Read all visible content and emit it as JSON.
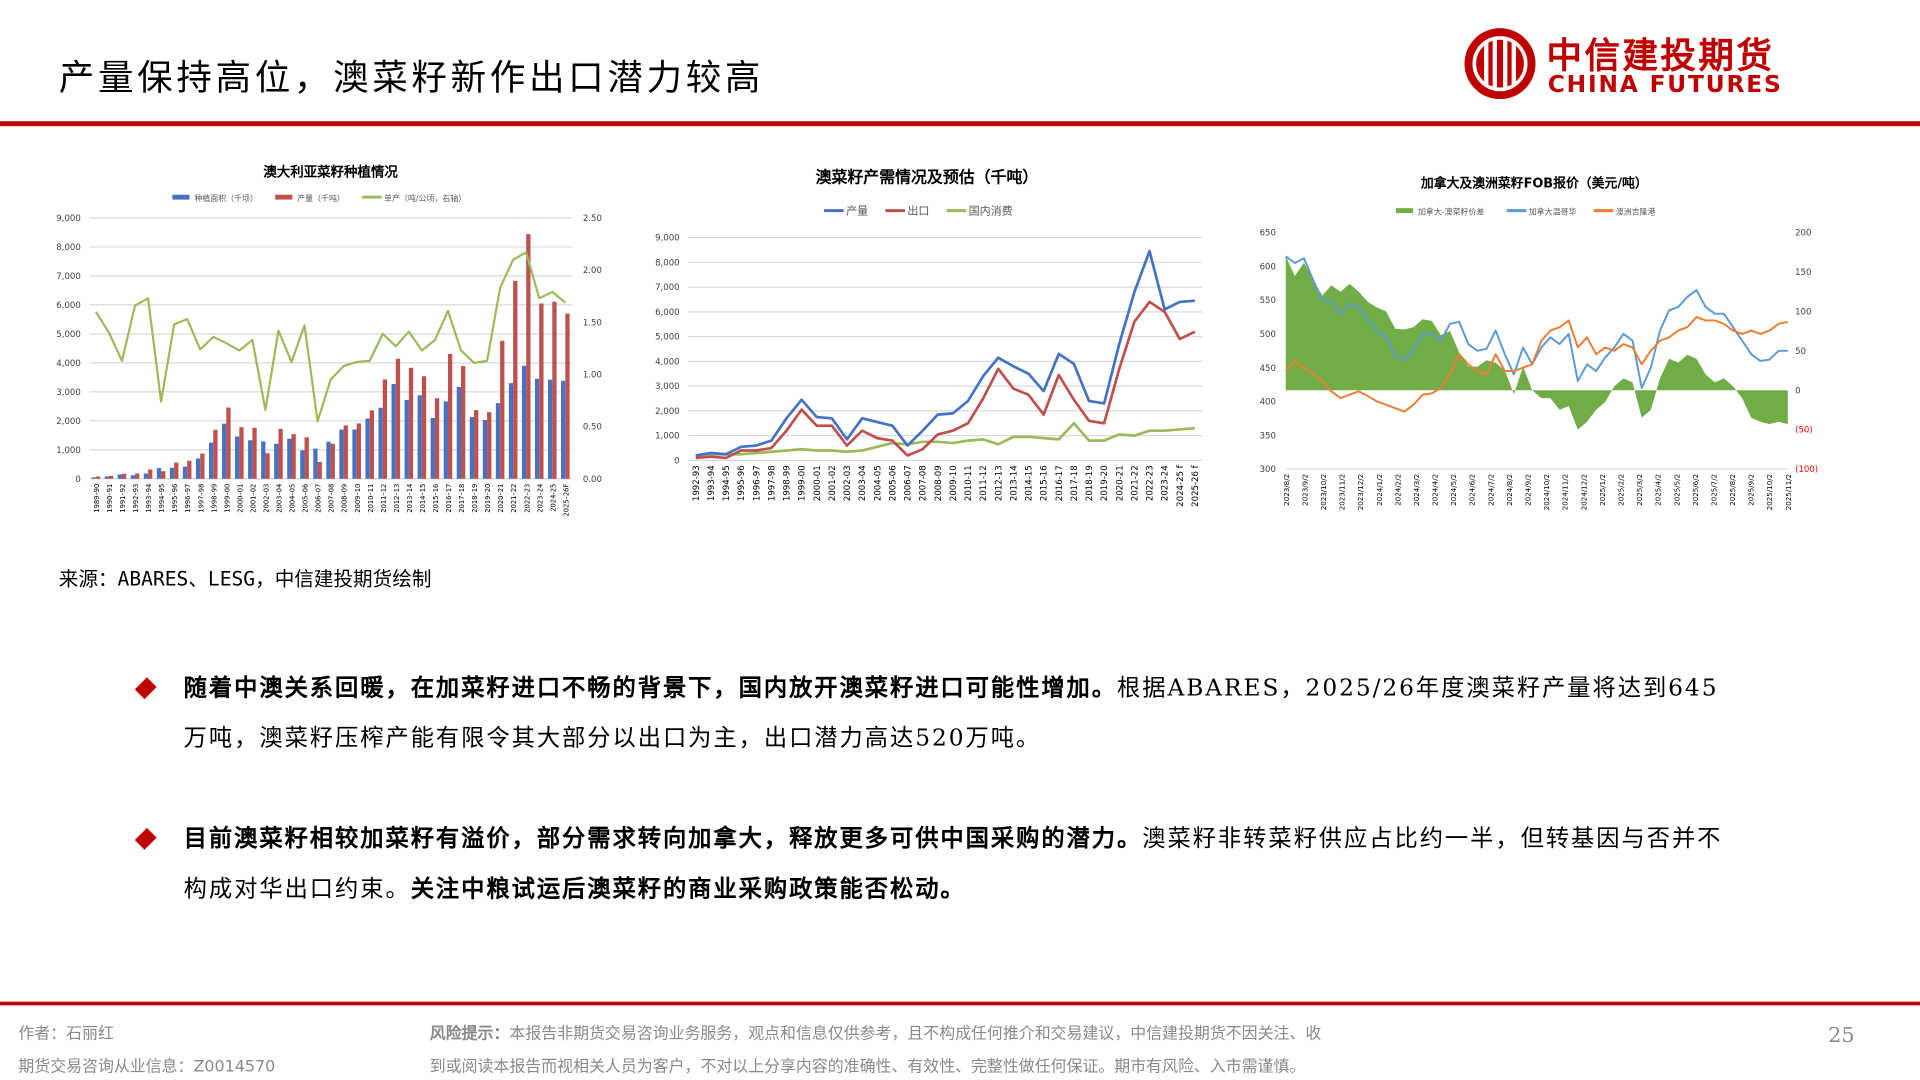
{
  "header": {
    "title": "产量保持高位，澳菜籽新作出口潜力较高",
    "logo_cn": "中信建投期货",
    "logo_en": "CHINA FUTURES"
  },
  "source": "来源：ABARES、LESG，中信建投期货绘制",
  "bullets": [
    {
      "bold": "随着中澳关系回暖，在加菜籽进口不畅的背景下，国内放开澳菜籽进口可能性增加。",
      "normal": "根据ABARES，2025/26年度澳菜籽产量将达到645万吨，澳菜籽压榨产能有限令其大部分以出口为主，出口潜力高达520万吨。",
      "bold2": ""
    },
    {
      "bold": "目前澳菜籽相较加菜籽有溢价，部分需求转向加拿大，释放更多可供中国采购的潜力。",
      "normal": "澳菜籽非转菜籽供应占比约一半，但转基因与否并不构成对华出口约束。",
      "bold2": "关注中粮试运后澳菜籽的商业采购政策能否松动。"
    }
  ],
  "footer": {
    "author": "作者：石丽红",
    "license": "期货交易咨询从业信息：Z0014570",
    "risk_label": "风险提示：",
    "risk_line1": "本报告非期货交易咨询业务服务，观点和信息仅供参考，且不构成任何推介和交易建议，中信建投期货不因关注、收",
    "risk_line2": "到或阅读本报告而视相关人员为客户，不对以上分享内容的准确性、有效性、完整性做任何保证。期市有风险、入市需谨慎。",
    "page": "25"
  },
  "colors": {
    "accent": "#c00000",
    "blue": "#4472c4",
    "red": "#c0504d",
    "green": "#9bbb59",
    "green_area": "#70ad47",
    "sky": "#5b9bd5",
    "orange": "#ed7d31"
  },
  "chart_data": [
    {
      "type": "bar",
      "title": "澳大利亚菜籽种植情况",
      "ylim": [
        0,
        9000
      ],
      "y2lim": [
        0,
        2.5
      ],
      "yticks": [
        "0",
        "1,000",
        "2,000",
        "3,000",
        "4,000",
        "5,000",
        "6,000",
        "7,000",
        "8,000",
        "9,000"
      ],
      "y2ticks": [
        "0.00",
        "0.50",
        "1.00",
        "1.50",
        "2.00",
        "2.50"
      ],
      "categories": [
        "1989–90",
        "1990–91",
        "1991–92",
        "1992–93",
        "1993–94",
        "1994–95",
        "1995–96",
        "1996–97",
        "1997–98",
        "1998–99",
        "1999–00",
        "2000–01",
        "2001–02",
        "2002–03",
        "2003–04",
        "2004–05",
        "2005–06",
        "2006–07",
        "2007–08",
        "2008–09",
        "2009–10",
        "2010–11",
        "2011–12",
        "2012–13",
        "2013–14",
        "2014–15",
        "2015–16",
        "2016–17",
        "2017–18",
        "2018–19",
        "2019–20",
        "2020–21",
        "2021–22",
        "2022–23",
        "2023–24",
        "2024-25",
        "2025–26F"
      ],
      "series": [
        {
          "name": "种植面积（千顷）",
          "kind": "bar",
          "values": [
            50,
            80,
            150,
            120,
            180,
            370,
            380,
            420,
            700,
            1250,
            1900,
            1460,
            1330,
            1290,
            1210,
            1380,
            980,
            1040,
            1280,
            1700,
            1700,
            2080,
            2450,
            3270,
            2720,
            2880,
            2100,
            2670,
            3170,
            2130,
            2030,
            2610,
            3300,
            3900,
            3450,
            3420,
            3380
          ]
        },
        {
          "name": "产量（千吨）",
          "kind": "bar",
          "values": [
            80,
            100,
            170,
            180,
            320,
            260,
            560,
            620,
            870,
            1690,
            2460,
            1780,
            1760,
            880,
            1720,
            1540,
            1430,
            580,
            1210,
            1840,
            1910,
            2360,
            3430,
            4140,
            3830,
            3540,
            2780,
            4310,
            3890,
            2370,
            2300,
            4760,
            6830,
            8440,
            6050,
            6110,
            5700
          ]
        },
        {
          "name": "单产（吨/公顷，右轴）",
          "kind": "line",
          "axis": "right",
          "values": [
            1.6,
            1.4,
            1.13,
            1.66,
            1.73,
            0.74,
            1.48,
            1.53,
            1.24,
            1.36,
            1.3,
            1.23,
            1.33,
            0.66,
            1.42,
            1.12,
            1.47,
            0.55,
            0.95,
            1.08,
            1.12,
            1.13,
            1.39,
            1.27,
            1.41,
            1.23,
            1.33,
            1.61,
            1.23,
            1.11,
            1.13,
            1.83,
            2.1,
            2.17,
            1.73,
            1.79,
            1.69
          ]
        }
      ]
    },
    {
      "type": "line",
      "title": "澳菜籽产需情况及预估（千吨）",
      "ylim": [
        0,
        9000
      ],
      "yticks": [
        "0",
        "1,000",
        "2,000",
        "3,000",
        "4,000",
        "5,000",
        "6,000",
        "7,000",
        "8,000",
        "9,000"
      ],
      "categories": [
        "1992-93",
        "1993-94",
        "1994-95",
        "1995-96",
        "1996-97",
        "1997-98",
        "1998-99",
        "1999-00",
        "2000-01",
        "2001-02",
        "2002-03",
        "2003-04",
        "2004-05",
        "2005-06",
        "2006-07",
        "2007-08",
        "2008-09",
        "2009-10",
        "2010-11",
        "2011-12",
        "2012-13",
        "2013-14",
        "2014-15",
        "2015-16",
        "2016-17",
        "2017-18",
        "2018-19",
        "2019-20",
        "2020-21",
        "2021-22",
        "2022-23",
        "2023-24",
        "2024-25 f",
        "2025-26 f"
      ],
      "series": [
        {
          "name": "产量",
          "values": [
            200,
            300,
            250,
            550,
            600,
            800,
            1700,
            2450,
            1750,
            1700,
            850,
            1700,
            1550,
            1400,
            600,
            1200,
            1850,
            1900,
            2400,
            3400,
            4150,
            3800,
            3500,
            2800,
            4300,
            3900,
            2400,
            2300,
            4700,
            6800,
            8450,
            6100,
            6400,
            6450
          ]
        },
        {
          "name": "出口",
          "values": [
            100,
            150,
            100,
            400,
            400,
            500,
            1200,
            2050,
            1400,
            1400,
            600,
            1200,
            900,
            800,
            200,
            450,
            1050,
            1200,
            1500,
            2500,
            3700,
            2900,
            2650,
            1850,
            3450,
            2450,
            1600,
            1500,
            3700,
            5600,
            6400,
            6000,
            4900,
            5200
          ]
        },
        {
          "name": "国内消费",
          "values": [
            200,
            250,
            250,
            250,
            300,
            350,
            400,
            450,
            400,
            400,
            350,
            400,
            550,
            700,
            650,
            750,
            750,
            700,
            800,
            850,
            650,
            950,
            950,
            900,
            850,
            1500,
            800,
            800,
            1050,
            1000,
            1200,
            1200,
            1250,
            1300
          ]
        }
      ]
    },
    {
      "type": "area",
      "title": "加拿大及澳洲菜籽FOB报价（美元/吨）",
      "ylim": [
        300,
        650
      ],
      "y2lim": [
        -100,
        200
      ],
      "yticks": [
        "300",
        "350",
        "400",
        "450",
        "500",
        "550",
        "600",
        "650"
      ],
      "y2ticks": [
        "(100)",
        "(50)",
        "0",
        "50",
        "100",
        "150",
        "200"
      ],
      "xlabels": [
        "2023/8/2",
        "2023/9/2",
        "2023/10/2",
        "2023/11/2",
        "2023/12/2",
        "2024/1/2",
        "2024/2/2",
        "2024/3/2",
        "2024/4/2",
        "2024/5/2",
        "2024/6/2",
        "2024/7/2",
        "2024/8/2",
        "2024/9/2",
        "2024/10/2",
        "2024/11/2",
        "2024/12/2",
        "2025/1/2",
        "2025/2/2",
        "2025/3/2",
        "2025/4/2",
        "2025/5/2",
        "2025/6/2",
        "2025/7/2",
        "2025/8/2",
        "2025/9/2",
        "2025/10/2",
        "2025/11/2"
      ],
      "series": [
        {
          "name": "加拿大-澳菜籽价差",
          "kind": "area",
          "axis": "right"
        },
        {
          "name": "加拿大温哥华",
          "values": [
            615,
            605,
            612,
            580,
            550,
            548,
            530,
            545,
            540,
            520,
            505,
            495,
            468,
            462,
            475,
            500,
            500,
            490,
            515,
            518,
            485,
            475,
            478,
            505,
            470,
            440,
            480,
            455,
            480,
            495,
            485,
            500,
            430,
            455,
            445,
            465,
            480,
            500,
            490,
            420,
            450,
            505,
            535,
            540,
            555,
            565,
            540,
            530,
            530,
            510,
            490,
            470,
            460,
            462,
            475,
            475
          ]
        },
        {
          "name": "澳洲吉隆港",
          "values": [
            445,
            460,
            450,
            440,
            430,
            415,
            405,
            410,
            415,
            408,
            400,
            395,
            390,
            385,
            395,
            410,
            412,
            420,
            440,
            470,
            455,
            445,
            440,
            470,
            445,
            445,
            450,
            455,
            490,
            505,
            510,
            520,
            480,
            495,
            470,
            480,
            475,
            485,
            480,
            455,
            475,
            490,
            495,
            505,
            510,
            525,
            520,
            520,
            515,
            505,
            500,
            505,
            500,
            505,
            515,
            518
          ]
        }
      ]
    }
  ]
}
